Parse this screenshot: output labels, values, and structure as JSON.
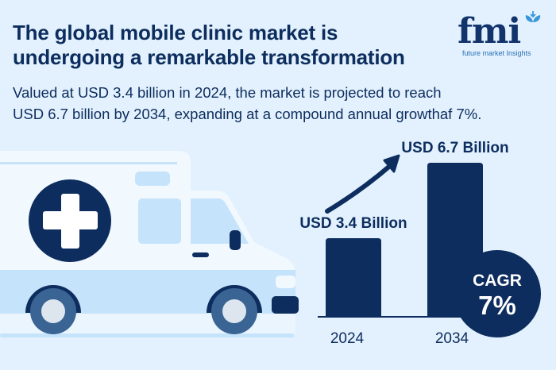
{
  "header": {
    "title_line1": "The global mobile clinic market is",
    "title_line2": "undergoing a remarkable transformation",
    "subtitle_line1": "Valued at USD 3.4 billion in 2024, the market is projected to reach",
    "subtitle_line2": "USD 6.7 billion by 2034, expanding at a compound annual growthaf 7%."
  },
  "logo": {
    "text": "fmi",
    "tagline": "future market Insights"
  },
  "colors": {
    "background": "#e2f1fd",
    "navy": "#0d2d5e",
    "light_blue": "#c5e3fa"
  },
  "illustration": {
    "icon": "ambulance-van-with-medical-cross"
  },
  "chart_data": {
    "type": "bar",
    "categories": [
      "2024",
      "2034"
    ],
    "values": [
      3.4,
      6.7
    ],
    "data_labels": [
      "USD 3.4 Billion",
      "USD 6.7 Billion"
    ],
    "unit": "USD Billion",
    "ylim": [
      0,
      7.5
    ],
    "grid": false,
    "annotation": {
      "line1": "CAGR",
      "line2": "7%"
    },
    "growth_arrow": true
  }
}
